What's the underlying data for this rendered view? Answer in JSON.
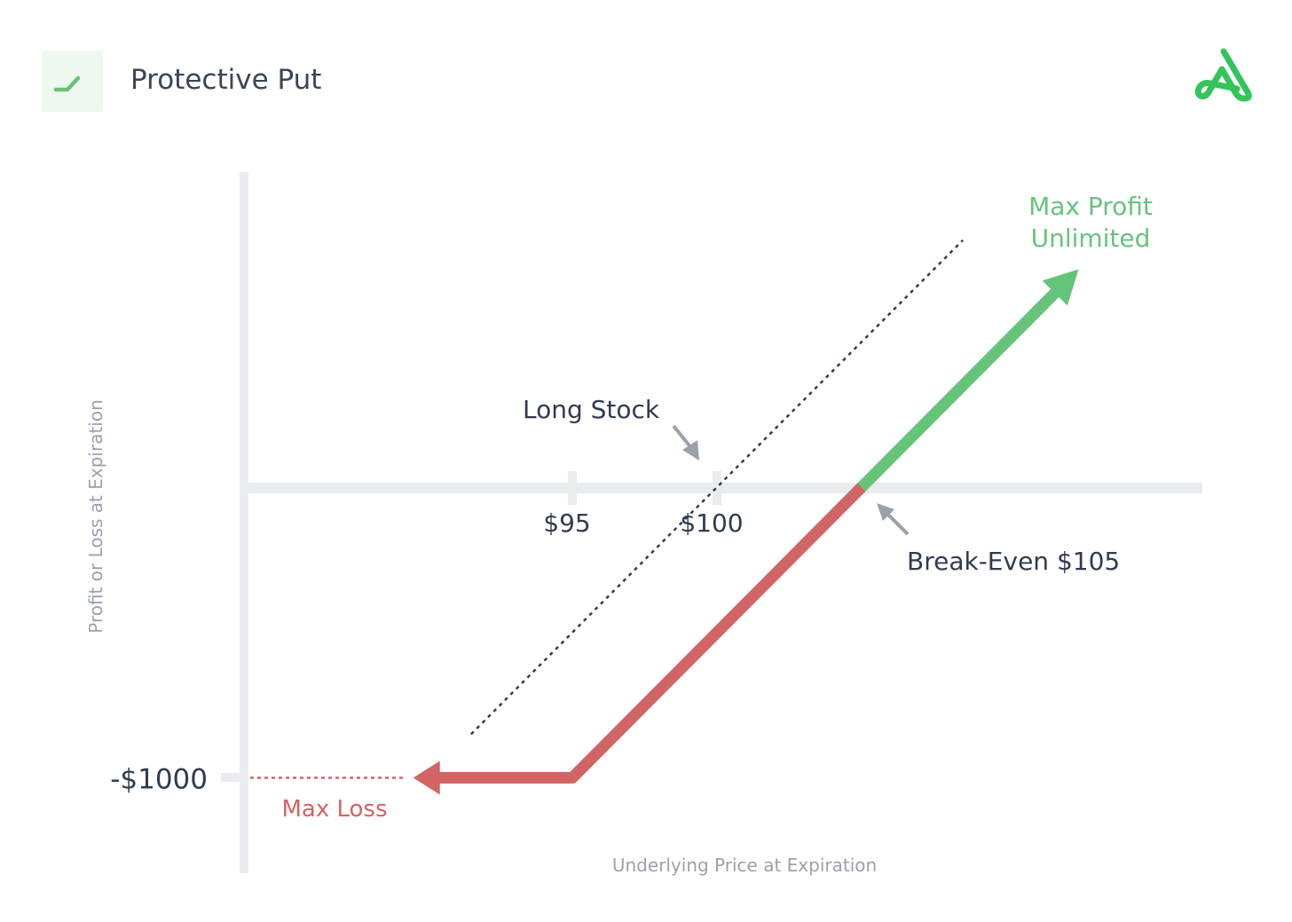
{
  "header": {
    "title": "Protective Put",
    "icon": "trend-line-icon",
    "logo": "brand-logo-icon"
  },
  "colors": {
    "text": "#2f3b4f",
    "muted": "#9aa1ab",
    "axis": "#e9ebee",
    "loss": "#d16464",
    "profit": "#66c47a",
    "brand": "#33c45a",
    "pointer": "#9aa1ab"
  },
  "chart_data": {
    "type": "line",
    "title": "Protective Put",
    "xlabel": "Underlying Price at Expiration",
    "ylabel": "Profit or Loss at Expiration",
    "x_ticks": [
      {
        "value": 95,
        "label": "$95"
      },
      {
        "value": 100,
        "label": "$100"
      }
    ],
    "y_ticks": [
      {
        "value": -1000,
        "label": "-$1000"
      }
    ],
    "series": [
      {
        "name": "Protective Put",
        "segments": [
          {
            "kind": "loss",
            "points": [
              [
                89.5,
                -1000
              ],
              [
                95,
                -1000
              ],
              [
                105,
                0
              ]
            ]
          },
          {
            "kind": "profit",
            "points": [
              [
                105,
                0
              ],
              [
                112.5,
                750
              ]
            ]
          }
        ]
      },
      {
        "name": "Long Stock",
        "style": "dotted",
        "points": [
          [
            91.5,
            -850
          ],
          [
            108.5,
            850
          ]
        ]
      }
    ],
    "max_loss_guide": {
      "from_x": 85,
      "to_x": 89.5,
      "y": -1000
    },
    "annotations": {
      "long_stock": "Long Stock",
      "break_even": "Break-Even $105",
      "max_loss": "Max Loss",
      "max_profit_line1": "Max Profit",
      "max_profit_line2": "Unlimited"
    }
  }
}
